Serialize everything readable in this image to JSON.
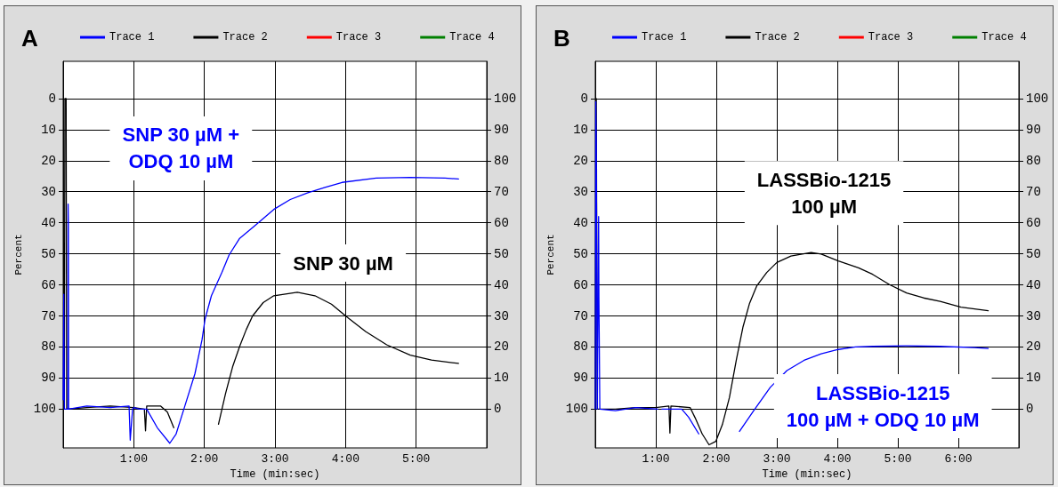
{
  "chart_data": [
    {
      "type": "line",
      "title": "A",
      "xlabel": "Time (min:sec)",
      "ylabel": "Percent",
      "xlim": [
        0,
        360
      ],
      "xticks": [
        {
          "value": 60,
          "label": "1:00"
        },
        {
          "value": 120,
          "label": "2:00"
        },
        {
          "value": 180,
          "label": "3:00"
        },
        {
          "value": 240,
          "label": "4:00"
        },
        {
          "value": 300,
          "label": "5:00"
        }
      ],
      "ylim": [
        112.5,
        -12
      ],
      "yticks": [
        0,
        10,
        20,
        30,
        40,
        50,
        60,
        70,
        80,
        90,
        100
      ],
      "y2lim": [
        -12.5,
        112
      ],
      "y2ticks": [
        0,
        10,
        20,
        30,
        40,
        50,
        60,
        70,
        80,
        90,
        100
      ],
      "grid": true,
      "legend": "top",
      "series": [
        {
          "name": "Trace 1",
          "color": "#0000ff",
          "x": [
            0,
            0.5,
            1,
            4,
            4.2,
            4.4,
            4.6,
            20,
            40,
            56,
            57,
            59,
            60,
            65,
            71,
            80,
            90.6,
            96,
            103,
            112,
            118,
            120.6,
            126,
            135,
            141,
            150,
            164,
            179,
            193,
            208,
            222.5,
            237,
            266,
            295,
            324.5,
            336
          ],
          "values": [
            97,
            63,
            100,
            100,
            34,
            40,
            100,
            99,
            99.5,
            99,
            110,
            100,
            99.5,
            100,
            100,
            106,
            111,
            108,
            99.5,
            88.6,
            77.7,
            71,
            63.5,
            55.9,
            50.4,
            45,
            40.6,
            35.7,
            32.5,
            30.3,
            28.6,
            27,
            25.6,
            25.4,
            25.6,
            25.9
          ]
        },
        {
          "name": "Trace 2",
          "color": "#000000",
          "x": [
            0,
            1,
            1.5,
            2.5,
            3,
            20,
            40,
            60,
            69,
            70,
            71,
            82.7,
            88.6,
            94,
            101.7,
            126.4,
            132,
            138,
            144,
            150,
            155.6,
            161,
            170,
            179,
            199,
            214,
            228,
            241,
            257,
            275,
            295,
            313,
            336
          ],
          "values": [
            100,
            100,
            0,
            0,
            100,
            99.5,
            99,
            99.5,
            100,
            107,
            99,
            99,
            101,
            106,
            null,
            null,
            104.9,
            95,
            86.4,
            79.8,
            74.4,
            70,
            65.7,
            63.5,
            62.4,
            63.5,
            66.2,
            70.3,
            75,
            79.3,
            82.6,
            84.2,
            85.3
          ]
        },
        {
          "name": "Trace 3",
          "color": "#ff0000"
        },
        {
          "name": "Trace 4",
          "color": "#008000"
        }
      ],
      "annotations": [
        "SNP 30 µM +\nODQ 10 µM",
        "SNP 30 µM"
      ]
    },
    {
      "type": "line",
      "title": "B",
      "xlabel": "Time (min:sec)",
      "ylabel": "Percent",
      "xlim": [
        0,
        420
      ],
      "xticks": [
        {
          "value": 60,
          "label": "1:00"
        },
        {
          "value": 120,
          "label": "2:00"
        },
        {
          "value": 180,
          "label": "3:00"
        },
        {
          "value": 240,
          "label": "4:00"
        },
        {
          "value": 300,
          "label": "5:00"
        },
        {
          "value": 360,
          "label": "6:00"
        }
      ],
      "ylim": [
        112.5,
        -12
      ],
      "yticks": [
        0,
        10,
        20,
        30,
        40,
        50,
        60,
        70,
        80,
        90,
        100
      ],
      "y2lim": [
        -12.5,
        112
      ],
      "y2ticks": [
        0,
        10,
        20,
        30,
        40,
        50,
        60,
        70,
        80,
        90,
        100
      ],
      "grid": true,
      "legend": "top",
      "series": [
        {
          "name": "Trace 1",
          "color": "#0000ff",
          "x": [
            0,
            0.5,
            1,
            2,
            3.3,
            3.6,
            4.5,
            20,
            40,
            62,
            64.8,
            66,
            75,
            85.7,
            92.5,
            102.6,
            107.7,
            133,
            143,
            156.6,
            173.5,
            190,
            207,
            224,
            241,
            258,
            275,
            308.6,
            342,
            376,
            389.6
          ],
          "values": [
            100,
            1,
            14,
            100,
            38,
            64,
            100,
            100.5,
            99.5,
            100,
            null,
            100,
            100,
            100,
            102.6,
            108,
            null,
            null,
            107.2,
            100.7,
            93,
            87.6,
            84.3,
            82.2,
            80.8,
            80,
            79.8,
            79.6,
            79.8,
            80.2,
            80.5
          ]
        },
        {
          "name": "Trace 2",
          "color": "#000000",
          "x": [
            0,
            0.5,
            1,
            1.5,
            2,
            20,
            40,
            60,
            73,
            74,
            75,
            94,
            99,
            106,
            112.8,
            119.5,
            126,
            133,
            139.8,
            146.5,
            153,
            160,
            170,
            180,
            194,
            214,
            224,
            241,
            261,
            275,
            291.7,
            308.6,
            325.5,
            342,
            362.6,
            389.6
          ],
          "values": [
            100,
            100,
            0,
            0,
            100,
            100,
            99.5,
            99.5,
            99,
            107.7,
            99,
            99.5,
            102.8,
            108,
            111.5,
            110.4,
            105,
            96.3,
            84.3,
            73.5,
            65.9,
            60.4,
            56,
            52.8,
            50.7,
            49.6,
            50.1,
            52.3,
            54.5,
            56.6,
            59.9,
            62.6,
            64.2,
            65.3,
            67.2,
            68.3
          ]
        },
        {
          "name": "Trace 3",
          "color": "#ff0000"
        },
        {
          "name": "Trace 4",
          "color": "#008000"
        }
      ],
      "annotations": [
        "LASSBio-1215\n100 µM",
        "LASSBio-1215\n100 µM + ODQ 10 µM"
      ]
    }
  ]
}
